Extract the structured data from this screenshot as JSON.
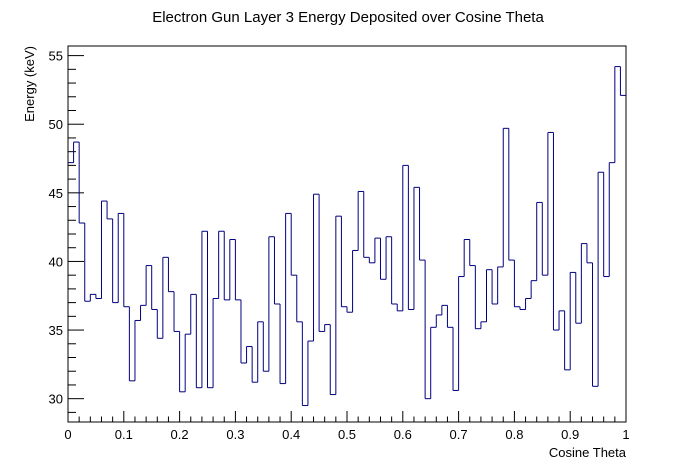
{
  "chart_data": {
    "type": "line",
    "style": "step-histogram",
    "title": "Electron Gun Layer 3 Energy Deposited over Cosine Theta",
    "xlabel": "Cosine Theta",
    "ylabel": "Energy (keV)",
    "xlim": [
      0,
      1
    ],
    "ylim": [
      28.3,
      55.7
    ],
    "x_ticks": [
      "0",
      "0.1",
      "0.2",
      "0.3",
      "0.4",
      "0.5",
      "0.6",
      "0.7",
      "0.8",
      "0.9",
      "1"
    ],
    "x_tick_values": [
      0,
      0.1,
      0.2,
      0.3,
      0.4,
      0.5,
      0.6,
      0.7,
      0.8,
      0.9,
      1
    ],
    "y_ticks": [
      "30",
      "35",
      "40",
      "45",
      "50",
      "55"
    ],
    "y_tick_values": [
      30,
      35,
      40,
      45,
      50,
      55
    ],
    "grid": false,
    "line_color": "#000080",
    "bin_width": 0.01,
    "series": [
      {
        "values": [
          47.2,
          48.7,
          42.8,
          37.1,
          37.6,
          37.3,
          44.4,
          43.1,
          37.0,
          43.5,
          36.7,
          31.3,
          35.7,
          36.8,
          39.7,
          36.5,
          34.4,
          40.3,
          37.8,
          34.9,
          30.5,
          34.7,
          37.6,
          30.8,
          42.2,
          30.8,
          37.3,
          42.2,
          37.2,
          41.6,
          37.2,
          32.6,
          33.8,
          31.2,
          35.6,
          32.0,
          41.8,
          36.9,
          31.1,
          43.5,
          39.0,
          35.6,
          29.5,
          34.2,
          44.9,
          34.9,
          35.4,
          30.3,
          43.3,
          36.7,
          36.3,
          40.8,
          45.1,
          40.3,
          39.9,
          41.7,
          38.7,
          41.8,
          36.9,
          36.4,
          47.0,
          36.5,
          45.4,
          40.1,
          30.0,
          35.2,
          36.1,
          36.8,
          35.2,
          30.6,
          38.9,
          41.6,
          39.7,
          35.1,
          35.6,
          39.4,
          36.9,
          39.6,
          49.7,
          40.1,
          36.7,
          36.5,
          37.3,
          38.6,
          44.3,
          39.0,
          49.4,
          35.0,
          36.4,
          32.1,
          39.2,
          35.5,
          41.3,
          39.9,
          30.9,
          46.5,
          38.9,
          47.2,
          54.2,
          52.1
        ]
      }
    ]
  }
}
